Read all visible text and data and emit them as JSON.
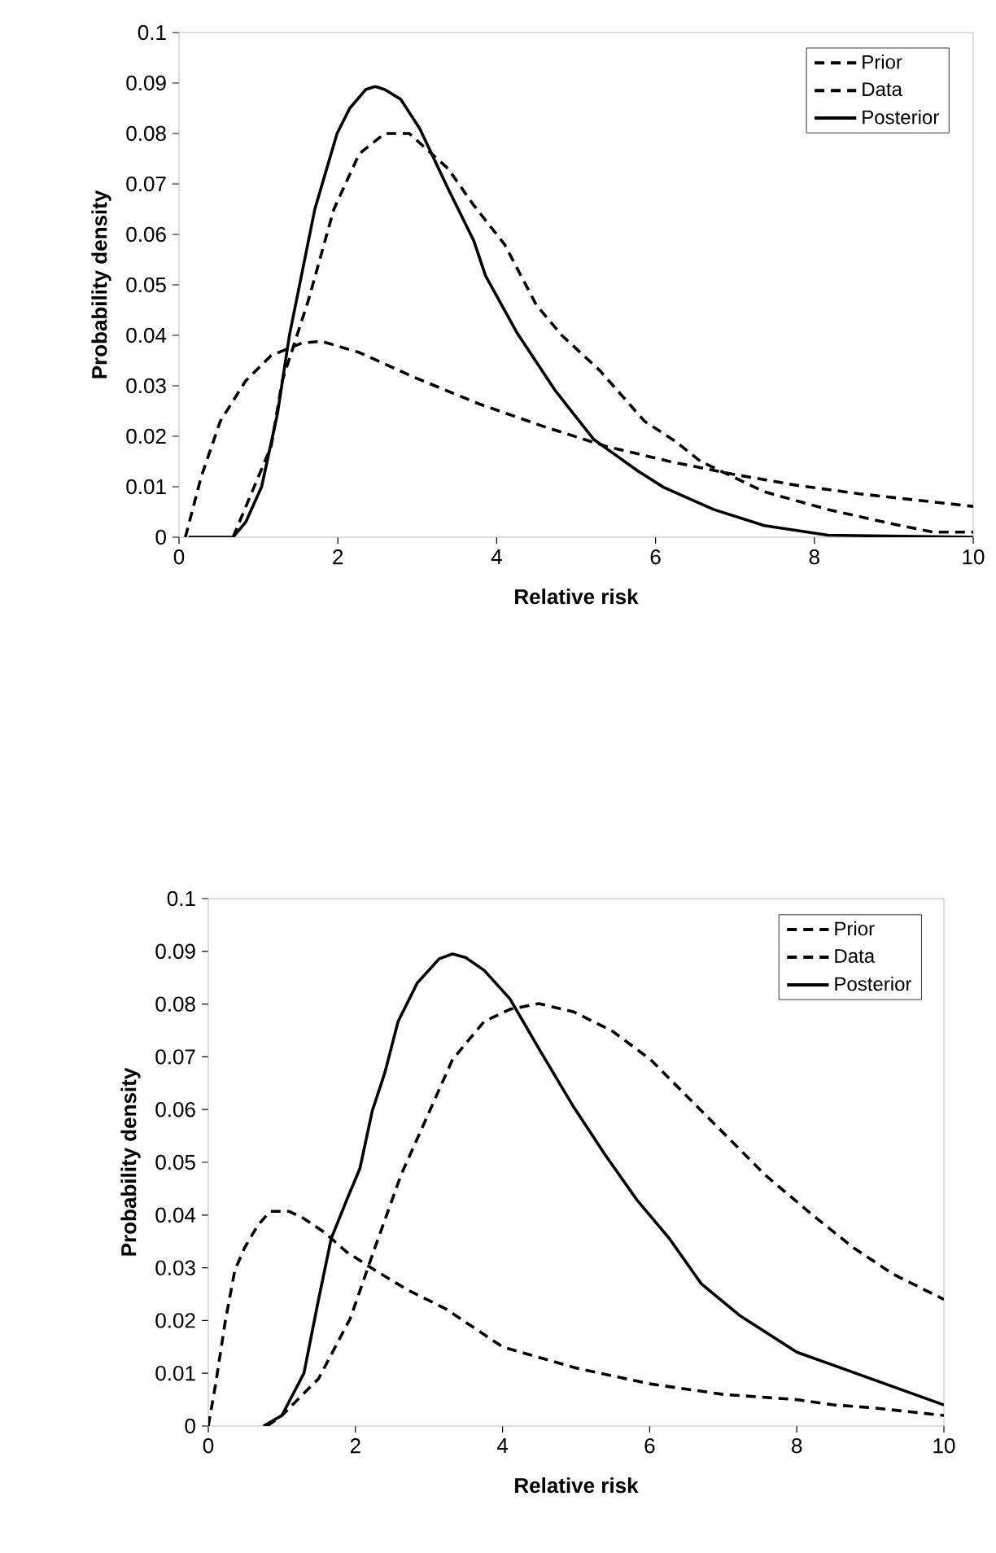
{
  "chart_data": [
    {
      "type": "line",
      "xlabel": "Relative risk",
      "ylabel": "Probability density",
      "xlim": [
        0,
        10
      ],
      "ylim": [
        0,
        0.1
      ],
      "xticks": [
        0,
        2,
        4,
        6,
        8,
        10
      ],
      "yticks": [
        0,
        0.01,
        0.02,
        0.03,
        0.04,
        0.05,
        0.06,
        0.07,
        0.08,
        0.09,
        0.1
      ],
      "legend": "top right",
      "series": [
        {
          "name": "Prior",
          "color": "#000000",
          "line_style": "dashed",
          "x": [
            0.68,
            1.16,
            1.3,
            1.63,
            1.95,
            2.27,
            2.59,
            2.9,
            3.39,
            3.7,
            4.1,
            4.5,
            4.82,
            5.3,
            5.86,
            6.25,
            6.57,
            7.37,
            8.17,
            8.96,
            9.5,
            10
          ],
          "values": [
            0,
            0.018,
            0.031,
            0.047,
            0.065,
            0.076,
            0.08,
            0.08,
            0.073,
            0.066,
            0.058,
            0.046,
            0.04,
            0.033,
            0.023,
            0.019,
            0.015,
            0.009,
            0.0055,
            0.0027,
            0.001,
            0.001
          ]
        },
        {
          "name": "Data",
          "color": "#000000",
          "line_style": "dashed",
          "x": [
            0.08,
            0.28,
            0.52,
            0.84,
            1.16,
            1.55,
            1.8,
            2.27,
            2.99,
            3.78,
            4.58,
            5.38,
            6.18,
            6.97,
            7.77,
            8.57,
            10
          ],
          "values": [
            0,
            0.012,
            0.023,
            0.031,
            0.036,
            0.0385,
            0.0388,
            0.0366,
            0.0315,
            0.0264,
            0.022,
            0.018,
            0.015,
            0.0125,
            0.0103,
            0.0086,
            0.0061
          ]
        },
        {
          "name": "Posterior",
          "color": "#000000",
          "line_style": "solid",
          "x": [
            0.12,
            0.68,
            0.84,
            1.04,
            1.24,
            1.39,
            1.55,
            1.71,
            1.99,
            2.15,
            2.35,
            2.47,
            2.59,
            2.79,
            3.03,
            3.39,
            3.71,
            3.86,
            4.26,
            4.74,
            5.22,
            5.78,
            6.1,
            6.73,
            7.37,
            8.17,
            10
          ],
          "values": [
            0,
            0,
            0.003,
            0.01,
            0.0245,
            0.04,
            0.0525,
            0.065,
            0.08,
            0.085,
            0.0887,
            0.0893,
            0.0887,
            0.0868,
            0.081,
            0.069,
            0.0588,
            0.0518,
            0.0404,
            0.029,
            0.0194,
            0.0131,
            0.0099,
            0.0055,
            0.0023,
            0.0004,
            0
          ]
        }
      ]
    },
    {
      "type": "line",
      "xlabel": "Relative risk",
      "ylabel": "Probability density",
      "xlim": [
        0,
        10
      ],
      "ylim": [
        0,
        0.1
      ],
      "xticks": [
        0,
        2,
        4,
        6,
        8,
        10
      ],
      "yticks": [
        0,
        0.01,
        0.02,
        0.03,
        0.04,
        0.05,
        0.06,
        0.07,
        0.08,
        0.09,
        0.1
      ],
      "legend": "top right",
      "series": [
        {
          "name": "Prior",
          "color": "#000000",
          "line_style": "dashed",
          "x": [
            0,
            0.1,
            0.23,
            0.36,
            0.49,
            0.67,
            0.84,
            1.1,
            1.28,
            1.58,
            1.88,
            2.27,
            2.71,
            3.23,
            4,
            5,
            6,
            7,
            7.5,
            8,
            8.5,
            9,
            10
          ],
          "values": [
            0,
            0.008,
            0.0198,
            0.0295,
            0.0337,
            0.038,
            0.0407,
            0.0407,
            0.0395,
            0.0367,
            0.033,
            0.0295,
            0.0258,
            0.0222,
            0.015,
            0.011,
            0.008,
            0.006,
            0.0055,
            0.005,
            0.004,
            0.0035,
            0.002
          ]
        },
        {
          "name": "Data",
          "color": "#000000",
          "line_style": "dashed",
          "x": [
            0.8,
            1.0,
            1.5,
            1.93,
            2.27,
            2.62,
            2.97,
            3.32,
            3.75,
            4.1,
            4.49,
            4.97,
            5.49,
            6.01,
            6.53,
            7.05,
            7.57,
            8.18,
            8.78,
            9.31,
            10
          ],
          "values": [
            0,
            0.002,
            0.009,
            0.0204,
            0.034,
            0.0476,
            0.0585,
            0.0695,
            0.0767,
            0.079,
            0.0801,
            0.0785,
            0.0749,
            0.0695,
            0.0622,
            0.0549,
            0.0476,
            0.0404,
            0.0337,
            0.0288,
            0.024
          ]
        },
        {
          "name": "Posterior",
          "color": "#000000",
          "line_style": "solid",
          "x": [
            0.75,
            1.0,
            1.3,
            1.49,
            1.67,
            1.88,
            2.06,
            2.23,
            2.4,
            2.58,
            2.84,
            3.14,
            3.32,
            3.5,
            3.75,
            4.1,
            4.53,
            4.97,
            5.4,
            5.83,
            6.27,
            6.7,
            7.22,
            8,
            9,
            10
          ],
          "values": [
            0,
            0.002,
            0.01,
            0.0234,
            0.0355,
            0.0428,
            0.0488,
            0.0598,
            0.067,
            0.0767,
            0.084,
            0.0886,
            0.0895,
            0.0888,
            0.0864,
            0.081,
            0.0707,
            0.0604,
            0.0513,
            0.0428,
            0.0355,
            0.027,
            0.021,
            0.014,
            0.009,
            0.004
          ]
        }
      ]
    }
  ]
}
